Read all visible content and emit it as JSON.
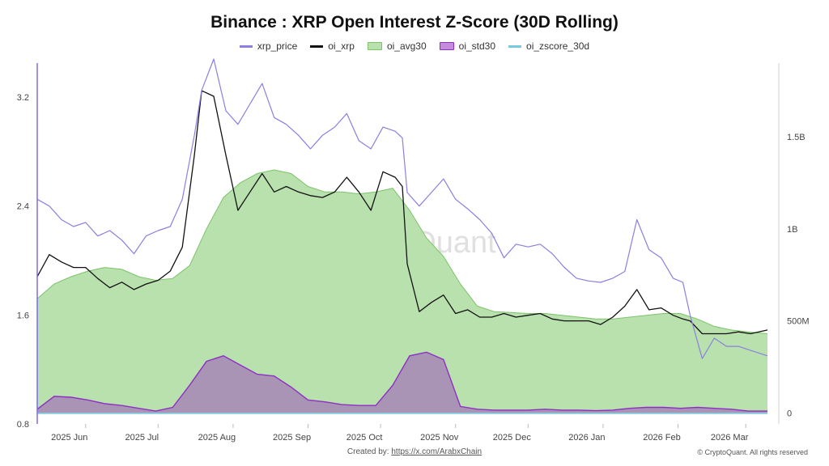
{
  "footer": {
    "created_prefix": "Created by: ",
    "created_link": "https://x.com/ArabxChain",
    "copyright": "© CryptoQuant. All rights reserved"
  },
  "watermark": "CryptoQuant",
  "colors": {
    "xrp_price": "#8b7fe0",
    "oi_xrp": "#111111",
    "oi_avg30_fill": "#b9e1ad",
    "oi_avg30_line": "#7cc36a",
    "oi_std30_fill": "#a88cb6",
    "oi_std30_line": "#8e2fc4",
    "oi_zscore_30d": "#7ac8df",
    "left_axis_line": "#7b6fe6"
  },
  "chart_data": {
    "type": "line",
    "title": "Binance : XRP Open Interest Z-Score (30D Rolling)",
    "legend_position": "top-center",
    "grid": false,
    "x_ticks": [
      "2025 Jun",
      "2025 Jul",
      "2025 Aug",
      "2025 Sep",
      "2025 Oct",
      "2025 Nov",
      "2025 Dec",
      "2026 Jan",
      "2026 Feb",
      "2026 Mar"
    ],
    "x_range": [
      "2025-05-12",
      "2026-03-12"
    ],
    "y_left": {
      "ticks": [
        "0.8",
        "1.6",
        "2.4",
        "3.2"
      ],
      "range": [
        0.8,
        3.45
      ]
    },
    "y_right": {
      "ticks": [
        "0",
        "500M",
        "1B",
        "1.5B"
      ],
      "range": [
        -60000000,
        1900000000
      ]
    },
    "series": [
      {
        "name": "xrp_price",
        "axis": "left",
        "kind": "line",
        "dates": [
          "2025-05-12",
          "2025-05-17",
          "2025-05-22",
          "2025-05-27",
          "2025-06-01",
          "2025-06-06",
          "2025-06-11",
          "2025-06-16",
          "2025-06-21",
          "2025-06-26",
          "2025-07-01",
          "2025-07-06",
          "2025-07-11",
          "2025-07-16",
          "2025-07-19",
          "2025-07-24",
          "2025-07-29",
          "2025-08-03",
          "2025-08-08",
          "2025-08-13",
          "2025-08-18",
          "2025-08-23",
          "2025-08-28",
          "2025-09-02",
          "2025-09-07",
          "2025-09-12",
          "2025-09-17",
          "2025-09-22",
          "2025-09-27",
          "2025-10-02",
          "2025-10-07",
          "2025-10-10",
          "2025-10-12",
          "2025-10-17",
          "2025-10-22",
          "2025-10-27",
          "2025-11-01",
          "2025-11-06",
          "2025-11-11",
          "2025-11-16",
          "2025-11-21",
          "2025-11-26",
          "2025-12-01",
          "2025-12-06",
          "2025-12-11",
          "2025-12-16",
          "2025-12-21",
          "2025-12-26",
          "2025-12-31",
          "2026-01-05",
          "2026-01-10",
          "2026-01-15",
          "2026-01-20",
          "2026-01-25",
          "2026-01-30",
          "2026-02-03",
          "2026-02-06",
          "2026-02-11",
          "2026-02-16",
          "2026-02-21",
          "2026-02-26",
          "2026-03-03",
          "2026-03-10"
        ],
        "values": [
          2.45,
          2.4,
          2.3,
          2.25,
          2.28,
          2.18,
          2.22,
          2.15,
          2.05,
          2.18,
          2.22,
          2.25,
          2.45,
          2.92,
          3.25,
          3.48,
          3.1,
          3.0,
          3.15,
          3.3,
          3.05,
          3.0,
          2.92,
          2.82,
          2.92,
          2.98,
          3.08,
          2.88,
          2.82,
          2.98,
          2.95,
          2.9,
          2.5,
          2.4,
          2.5,
          2.6,
          2.45,
          2.38,
          2.3,
          2.2,
          2.02,
          2.12,
          2.1,
          2.12,
          2.05,
          1.95,
          1.87,
          1.85,
          1.84,
          1.87,
          1.92,
          2.3,
          2.08,
          2.02,
          1.87,
          1.84,
          1.6,
          1.28,
          1.43,
          1.37,
          1.37,
          1.34,
          1.3
        ]
      },
      {
        "name": "oi_xrp",
        "axis": "right",
        "kind": "line",
        "dates": [
          "2025-05-12",
          "2025-05-17",
          "2025-05-22",
          "2025-05-27",
          "2025-06-01",
          "2025-06-06",
          "2025-06-11",
          "2025-06-16",
          "2025-06-21",
          "2025-06-26",
          "2025-07-01",
          "2025-07-06",
          "2025-07-11",
          "2025-07-16",
          "2025-07-19",
          "2025-07-24",
          "2025-07-29",
          "2025-08-03",
          "2025-08-08",
          "2025-08-13",
          "2025-08-18",
          "2025-08-23",
          "2025-08-28",
          "2025-09-02",
          "2025-09-07",
          "2025-09-12",
          "2025-09-17",
          "2025-09-22",
          "2025-09-27",
          "2025-10-02",
          "2025-10-07",
          "2025-10-10",
          "2025-10-12",
          "2025-10-17",
          "2025-10-22",
          "2025-10-27",
          "2025-11-01",
          "2025-11-06",
          "2025-11-11",
          "2025-11-16",
          "2025-11-21",
          "2025-11-26",
          "2025-12-01",
          "2025-12-06",
          "2025-12-11",
          "2025-12-16",
          "2025-12-21",
          "2025-12-26",
          "2025-12-31",
          "2026-01-05",
          "2026-01-10",
          "2026-01-15",
          "2026-01-20",
          "2026-01-25",
          "2026-01-30",
          "2026-02-03",
          "2026-02-06",
          "2026-02-11",
          "2026-02-16",
          "2026-02-21",
          "2026-02-26",
          "2026-03-03",
          "2026-03-10"
        ],
        "values": [
          740000000,
          860000000,
          820000000,
          790000000,
          790000000,
          730000000,
          680000000,
          710000000,
          670000000,
          700000000,
          720000000,
          770000000,
          900000000,
          1400000000,
          1750000000,
          1720000000,
          1400000000,
          1100000000,
          1200000000,
          1300000000,
          1200000000,
          1230000000,
          1200000000,
          1180000000,
          1170000000,
          1200000000,
          1280000000,
          1200000000,
          1100000000,
          1310000000,
          1280000000,
          1230000000,
          810000000,
          550000000,
          600000000,
          640000000,
          540000000,
          560000000,
          520000000,
          520000000,
          540000000,
          520000000,
          530000000,
          540000000,
          510000000,
          500000000,
          500000000,
          500000000,
          480000000,
          520000000,
          580000000,
          670000000,
          560000000,
          570000000,
          530000000,
          510000000,
          500000000,
          430000000,
          430000000,
          430000000,
          440000000,
          430000000,
          450000000
        ]
      },
      {
        "name": "oi_avg30",
        "axis": "right",
        "kind": "area",
        "dates": [
          "2025-05-12",
          "2025-05-19",
          "2025-05-26",
          "2025-06-02",
          "2025-06-09",
          "2025-06-16",
          "2025-06-23",
          "2025-06-30",
          "2025-07-07",
          "2025-07-14",
          "2025-07-21",
          "2025-07-28",
          "2025-08-04",
          "2025-08-11",
          "2025-08-18",
          "2025-08-25",
          "2025-09-01",
          "2025-09-08",
          "2025-09-15",
          "2025-09-22",
          "2025-09-29",
          "2025-10-06",
          "2025-10-13",
          "2025-10-20",
          "2025-10-27",
          "2025-11-03",
          "2025-11-10",
          "2025-11-17",
          "2025-11-24",
          "2025-12-01",
          "2025-12-08",
          "2025-12-15",
          "2025-12-22",
          "2025-12-29",
          "2026-01-05",
          "2026-01-12",
          "2026-01-19",
          "2026-01-26",
          "2026-02-02",
          "2026-02-09",
          "2026-02-16",
          "2026-02-23",
          "2026-03-02",
          "2026-03-10"
        ],
        "values": [
          620000000,
          700000000,
          740000000,
          770000000,
          790000000,
          780000000,
          740000000,
          720000000,
          730000000,
          800000000,
          1000000000,
          1170000000,
          1250000000,
          1300000000,
          1320000000,
          1300000000,
          1230000000,
          1200000000,
          1200000000,
          1190000000,
          1200000000,
          1220000000,
          1100000000,
          950000000,
          850000000,
          700000000,
          580000000,
          550000000,
          545000000,
          540000000,
          540000000,
          530000000,
          520000000,
          510000000,
          510000000,
          520000000,
          530000000,
          540000000,
          540000000,
          510000000,
          470000000,
          450000000,
          440000000,
          430000000
        ]
      },
      {
        "name": "oi_std30",
        "axis": "right",
        "kind": "area",
        "dates": [
          "2025-05-12",
          "2025-05-19",
          "2025-05-26",
          "2025-06-02",
          "2025-06-09",
          "2025-06-16",
          "2025-06-23",
          "2025-06-30",
          "2025-07-07",
          "2025-07-14",
          "2025-07-21",
          "2025-07-28",
          "2025-08-04",
          "2025-08-11",
          "2025-08-18",
          "2025-08-25",
          "2025-09-01",
          "2025-09-08",
          "2025-09-15",
          "2025-09-22",
          "2025-09-29",
          "2025-10-06",
          "2025-10-13",
          "2025-10-20",
          "2025-10-27",
          "2025-11-03",
          "2025-11-10",
          "2025-11-17",
          "2025-11-24",
          "2025-12-01",
          "2025-12-08",
          "2025-12-15",
          "2025-12-22",
          "2025-12-29",
          "2026-01-05",
          "2026-01-12",
          "2026-01-19",
          "2026-01-26",
          "2026-02-02",
          "2026-02-09",
          "2026-02-16",
          "2026-02-23",
          "2026-03-02",
          "2026-03-10"
        ],
        "values": [
          20000000,
          90000000,
          85000000,
          70000000,
          50000000,
          40000000,
          25000000,
          10000000,
          30000000,
          150000000,
          280000000,
          310000000,
          260000000,
          210000000,
          200000000,
          140000000,
          70000000,
          60000000,
          45000000,
          40000000,
          40000000,
          150000000,
          310000000,
          330000000,
          290000000,
          35000000,
          20000000,
          15000000,
          15000000,
          15000000,
          20000000,
          15000000,
          15000000,
          12000000,
          15000000,
          25000000,
          30000000,
          30000000,
          25000000,
          30000000,
          25000000,
          20000000,
          10000000,
          10000000
        ]
      },
      {
        "name": "oi_zscore_30d",
        "axis": "right",
        "kind": "line",
        "dates": [
          "2025-05-12",
          "2026-03-10"
        ],
        "values": [
          -3000000,
          -3000000
        ]
      }
    ]
  }
}
